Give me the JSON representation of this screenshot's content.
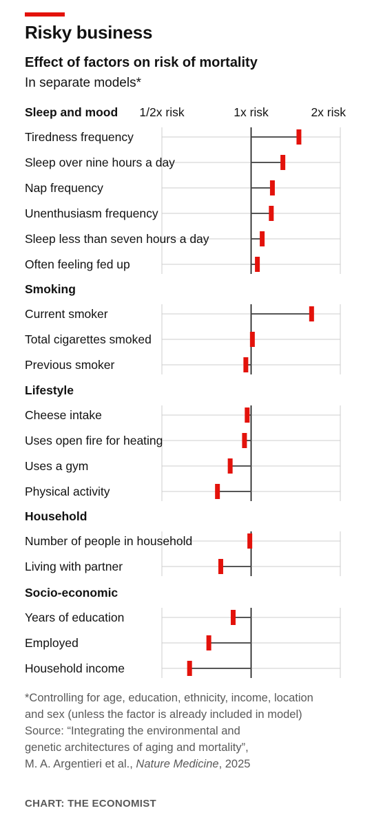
{
  "header": {
    "title": "Risky business",
    "subtitle": "Effect of factors on risk of mortality",
    "description": "In separate models*"
  },
  "footer": {
    "note_line1": "*Controlling for age, education, ethnicity, income, location",
    "note_line2": "and sex (unless the factor is already included in model)",
    "source_line1": "Source: “Integrating the environmental and",
    "source_line2": "genetic architectures of aging and mortality”,",
    "source_line3_pre": "M. A. Argentieri et al., ",
    "source_journal": "Nature Medicine",
    "source_line3_post": ", 2025",
    "credit": "CHART: THE ECONOMIST"
  },
  "colors": {
    "marker": "#e3120b",
    "stem": "#555555",
    "gridline": "#cccccc",
    "baseline": "#121212",
    "accent_bar": "#e3120b"
  },
  "chart_data": {
    "type": "dot",
    "scale": "log2",
    "x_ticks": [
      {
        "value": 0.5,
        "label": "1/2x risk"
      },
      {
        "value": 1,
        "label": "1x risk"
      },
      {
        "value": 2,
        "label": "2x risk"
      }
    ],
    "xlim": [
      0.5,
      2
    ],
    "reference": 1,
    "groups": [
      {
        "name": "Sleep and mood",
        "items": [
          {
            "label": "Tiredness frequency",
            "value": 1.45
          },
          {
            "label": "Sleep over nine hours a day",
            "value": 1.28
          },
          {
            "label": "Nap frequency",
            "value": 1.18
          },
          {
            "label": "Unenthusiasm frequency",
            "value": 1.17
          },
          {
            "label": "Sleep less than seven hours a day",
            "value": 1.09
          },
          {
            "label": "Often feeling fed up",
            "value": 1.05
          }
        ]
      },
      {
        "name": "Smoking",
        "items": [
          {
            "label": "Current smoker",
            "value": 1.6
          },
          {
            "label": "Total cigarettes smoked",
            "value": 1.01
          },
          {
            "label": "Previous smoker",
            "value": 0.96
          }
        ]
      },
      {
        "name": "Lifestyle",
        "items": [
          {
            "label": "Cheese intake",
            "value": 0.97
          },
          {
            "label": "Uses open fire for heating",
            "value": 0.95
          },
          {
            "label": "Uses a gym",
            "value": 0.85
          },
          {
            "label": "Physical activity",
            "value": 0.77
          }
        ]
      },
      {
        "name": "Household",
        "items": [
          {
            "label": "Number of people in household",
            "value": 0.99
          },
          {
            "label": "Living with partner",
            "value": 0.79
          }
        ]
      },
      {
        "name": "Socio-economic",
        "items": [
          {
            "label": "Years of education",
            "value": 0.87
          },
          {
            "label": "Employed",
            "value": 0.72
          },
          {
            "label": "Household income",
            "value": 0.62
          }
        ]
      }
    ]
  }
}
